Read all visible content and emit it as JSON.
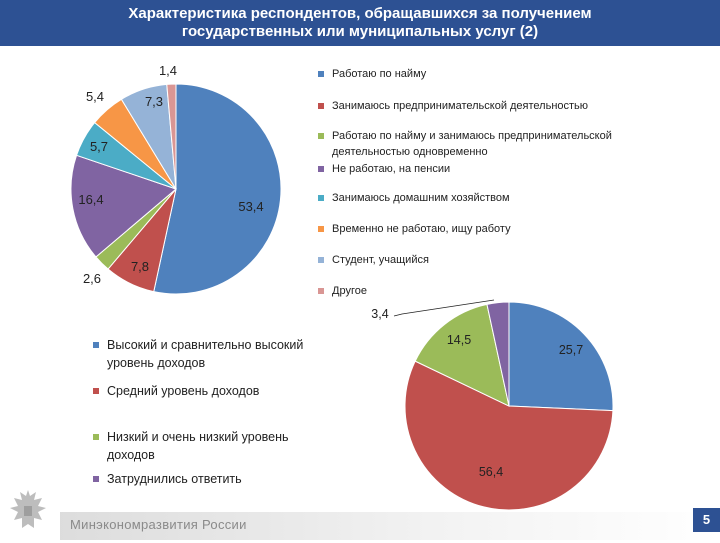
{
  "header": {
    "title_line1": "Характеристика респондентов, обращавшихся за получением",
    "title_line2": "государственных или муниципальных услуг (2)"
  },
  "footer": {
    "ministry": "Минэкономразвития России",
    "page_number": "5"
  },
  "chart_data": [
    {
      "type": "pie",
      "categories": [
        "Работаю по найму",
        "Занимаюсь предпринимательской деятельностью",
        "Работаю по найму и занимаюсь предпринимательской деятельностью одновременно",
        "Не работаю, на пенсии",
        "Занимаюсь домашним хозяйством",
        "Временно не работаю, ищу работу",
        "Студент, учащийся",
        "Другое"
      ],
      "values": [
        53.4,
        7.8,
        2.6,
        16.4,
        5.7,
        5.4,
        7.3,
        1.4
      ],
      "labels": [
        "53,4",
        "7,8",
        "2,6",
        "16,4",
        "5,7",
        "5,4",
        "7,3",
        "1,4"
      ],
      "colors": [
        "#4f81bd",
        "#c0504d",
        "#9bbb59",
        "#8064a2",
        "#4bacc6",
        "#f79646",
        "#95b3d7",
        "#d99694"
      ],
      "legend": "right"
    },
    {
      "type": "pie",
      "categories": [
        "Высокий и сравнительно высокий уровень доходов",
        "Средний уровень доходов",
        "Низкий и очень низкий уровень доходов",
        "Затруднились ответить"
      ],
      "values": [
        25.7,
        56.4,
        14.5,
        3.4
      ],
      "labels": [
        "25,7",
        "56,4",
        "14,5",
        "3,4"
      ],
      "colors": [
        "#4f81bd",
        "#c0504d",
        "#9bbb59",
        "#8064a2"
      ],
      "legend": "left"
    }
  ]
}
